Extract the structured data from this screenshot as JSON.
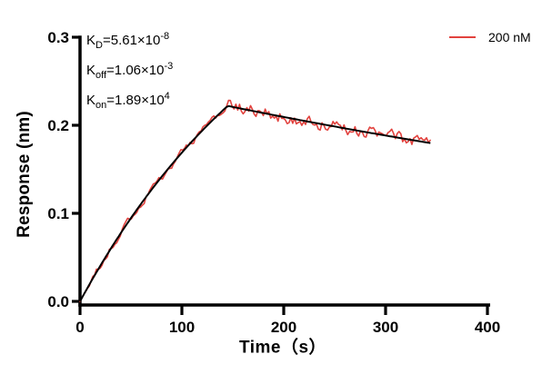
{
  "chart_data": {
    "type": "line",
    "title": "",
    "xlabel": "Time（s）",
    "ylabel": "Response (nm)",
    "xlim": [
      0,
      400
    ],
    "ylim": [
      0,
      0.3
    ],
    "xticks": [
      0,
      100,
      200,
      300,
      400
    ],
    "ytick_labels": [
      "0.0",
      "0.1",
      "0.2",
      "0.3"
    ],
    "ytick_values": [
      0,
      0.1,
      0.2,
      0.3
    ],
    "grid": false,
    "legend": {
      "position": "top-right",
      "entries": [
        {
          "label": "200 nM",
          "color": "#E2423E"
        }
      ]
    },
    "annotations": [
      {
        "base": "K",
        "sub": "D",
        "value": "=5.61×10",
        "exp": "-8"
      },
      {
        "base": "K",
        "sub": "off",
        "value": "=1.06×10",
        "exp": "-3"
      },
      {
        "base": "K",
        "sub": "on",
        "value": "=1.89×10",
        "exp": "4"
      }
    ],
    "constants": {
      "KD_M": 5.61e-08,
      "koff_per_s": 0.00106,
      "kon_per_M_s": 18900.0,
      "concentration_nM": 200
    },
    "series": [
      {
        "name": "200 nM",
        "color": "#E2423E",
        "style": "noisy-data",
        "width": 1.6
      },
      {
        "name": "fit",
        "color": "#000000",
        "style": "smooth-fit",
        "width": 2
      }
    ],
    "model": {
      "association": {
        "t_start": 0,
        "t_end": 145,
        "Req": 0.4402,
        "kobs": 0.00484
      },
      "dissociation": {
        "t_start": 145,
        "t_end": 345,
        "R0": 0.222,
        "koff": 0.00106
      },
      "peak_response": 0.222,
      "end_response": 0.18,
      "noise": {
        "seed": 20,
        "amp_association": 0.0035,
        "amp_dissociation": 0.0062,
        "step": 1.8,
        "smoothing": 0.45
      }
    }
  }
}
